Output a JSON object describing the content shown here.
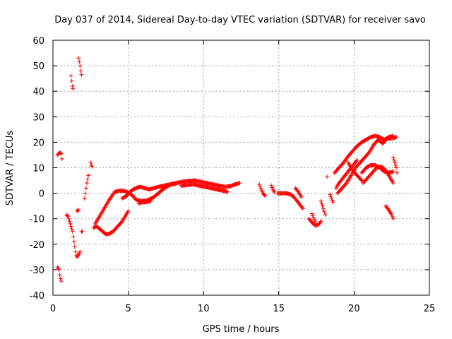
{
  "chart_data": {
    "type": "scatter",
    "title": "Day 037 of 2014, Sidereal Day-to-day VTEC variation (SDTVAR) for receiver savo",
    "xlabel": "GPS time / hours",
    "ylabel": "SDTVAR / TECUs",
    "xlim": [
      0,
      25
    ],
    "ylim": [
      -40,
      60
    ],
    "xticks": [
      0,
      5,
      10,
      15,
      20,
      25
    ],
    "yticks": [
      -40,
      -30,
      -20,
      -10,
      0,
      10,
      20,
      30,
      40,
      50,
      60
    ],
    "grid": true,
    "marker": "+",
    "color": "#ff0000",
    "series": [
      {
        "name": "SDTVAR",
        "segments": [
          [
            [
              0.3,
              15
            ],
            [
              0.45,
              16
            ],
            [
              0.55,
              15.5
            ],
            [
              0.6,
              13.5
            ]
          ],
          [
            [
              0.3,
              -29
            ],
            [
              0.4,
              -30
            ],
            [
              0.45,
              -32
            ],
            [
              0.5,
              -33.5
            ],
            [
              0.55,
              -34.5
            ]
          ],
          [
            [
              0.9,
              -8.5
            ],
            [
              1.0,
              -9
            ],
            [
              1.1,
              -11
            ],
            [
              1.2,
              -13
            ],
            [
              1.3,
              -15
            ],
            [
              1.35,
              -17
            ],
            [
              1.4,
              -19
            ],
            [
              1.45,
              -21
            ],
            [
              1.5,
              -23
            ],
            [
              1.55,
              -24.5
            ],
            [
              1.6,
              -25
            ],
            [
              1.7,
              -24
            ],
            [
              1.8,
              -23
            ]
          ],
          [
            [
              1.2,
              46
            ],
            [
              1.25,
              44
            ],
            [
              1.3,
              42
            ],
            [
              1.32,
              41
            ]
          ],
          [
            [
              1.7,
              53
            ],
            [
              1.75,
              51.5
            ],
            [
              1.8,
              50
            ],
            [
              1.85,
              48
            ],
            [
              1.9,
              46.5
            ]
          ],
          [
            [
              1.6,
              -7
            ],
            [
              1.7,
              -6.5
            ]
          ],
          [
            [
              1.9,
              -15
            ],
            [
              1.95,
              -15
            ]
          ],
          [
            [
              2.2,
              2
            ],
            [
              2.25,
              4
            ],
            [
              2.3,
              5.5
            ],
            [
              2.35,
              7
            ]
          ],
          [
            [
              2.1,
              -2
            ],
            [
              2.15,
              0
            ]
          ],
          [
            [
              2.5,
              12
            ],
            [
              2.55,
              11
            ],
            [
              2.6,
              10.5
            ]
          ],
          [
            [
              2.7,
              -13.5
            ],
            [
              2.9,
              -13
            ],
            [
              3.1,
              -14
            ],
            [
              3.3,
              -15
            ],
            [
              3.5,
              -16
            ],
            [
              3.7,
              -16
            ],
            [
              4.0,
              -15
            ],
            [
              4.3,
              -13
            ],
            [
              4.6,
              -11
            ],
            [
              4.8,
              -9
            ],
            [
              5.0,
              -7
            ]
          ],
          [
            [
              2.8,
              -12
            ],
            [
              3.0,
              -10
            ],
            [
              3.2,
              -8
            ],
            [
              3.5,
              -5
            ],
            [
              3.8,
              -2
            ],
            [
              4.1,
              0.5
            ],
            [
              4.4,
              1
            ],
            [
              4.7,
              1
            ],
            [
              4.9,
              0.5
            ],
            [
              5.1,
              0
            ],
            [
              5.3,
              -1
            ],
            [
              5.5,
              -2.5
            ],
            [
              5.8,
              -3
            ],
            [
              6.1,
              -3
            ],
            [
              6.4,
              -2.5
            ],
            [
              6.7,
              -1.5
            ],
            [
              7.0,
              0
            ],
            [
              7.3,
              1.5
            ],
            [
              7.6,
              2.8
            ],
            [
              7.9,
              3.5
            ],
            [
              8.2,
              3.8
            ]
          ],
          [
            [
              4.6,
              -2
            ],
            [
              4.9,
              -1
            ],
            [
              5.2,
              1
            ],
            [
              5.5,
              2
            ],
            [
              5.8,
              2.5
            ],
            [
              6.1,
              2
            ],
            [
              6.4,
              1.5
            ],
            [
              6.7,
              2
            ],
            [
              7.0,
              2.5
            ],
            [
              7.4,
              3
            ],
            [
              7.8,
              3.5
            ],
            [
              8.2,
              4
            ],
            [
              8.6,
              4.5
            ],
            [
              9.0,
              4.8
            ],
            [
              9.4,
              5
            ],
            [
              9.8,
              4.5
            ],
            [
              10.2,
              4
            ],
            [
              10.6,
              3.5
            ],
            [
              11.0,
              3
            ],
            [
              11.4,
              2.5
            ],
            [
              11.8,
              2.8
            ],
            [
              12.1,
              3.5
            ],
            [
              12.4,
              4
            ]
          ],
          [
            [
              5.7,
              -4
            ],
            [
              5.9,
              -3.5
            ],
            [
              6.2,
              -3.5
            ],
            [
              6.5,
              -3
            ]
          ],
          [
            [
              8.5,
              3
            ],
            [
              8.9,
              3.2
            ],
            [
              9.3,
              3.5
            ],
            [
              9.7,
              3
            ],
            [
              10.1,
              2.5
            ],
            [
              10.5,
              2
            ],
            [
              10.9,
              1.5
            ],
            [
              11.3,
              1
            ],
            [
              11.6,
              0.5
            ]
          ],
          [
            [
              13.7,
              3.5
            ],
            [
              13.8,
              2
            ],
            [
              13.9,
              0.5
            ],
            [
              14.0,
              -0.5
            ],
            [
              14.1,
              -1
            ]
          ],
          [
            [
              14.5,
              3
            ],
            [
              14.6,
              1.5
            ],
            [
              14.7,
              0.5
            ]
          ],
          [
            [
              14.9,
              0
            ],
            [
              15.2,
              0
            ],
            [
              15.5,
              0
            ],
            [
              15.8,
              -0.5
            ],
            [
              16.0,
              -1.5
            ],
            [
              16.2,
              -3
            ],
            [
              16.4,
              -4.5
            ],
            [
              16.6,
              -6
            ]
          ],
          [
            [
              16.1,
              2
            ],
            [
              16.3,
              0.5
            ],
            [
              16.5,
              -1.5
            ]
          ],
          [
            [
              17.0,
              -10
            ],
            [
              17.2,
              -11.5
            ],
            [
              17.4,
              -12.5
            ],
            [
              17.6,
              -12.5
            ],
            [
              17.8,
              -11
            ]
          ],
          [
            [
              17.2,
              -8
            ],
            [
              17.3,
              -9.5
            ],
            [
              17.4,
              -11
            ]
          ],
          [
            [
              17.8,
              -3
            ],
            [
              17.9,
              -5
            ],
            [
              18.0,
              -7
            ],
            [
              18.1,
              -8.5
            ]
          ],
          [
            [
              18.4,
              -0.5
            ],
            [
              18.5,
              -2
            ],
            [
              18.6,
              -3.5
            ]
          ],
          [
            [
              18.2,
              6.5
            ]
          ],
          [
            [
              18.7,
              8
            ],
            [
              19.0,
              10
            ],
            [
              19.3,
              12
            ],
            [
              19.6,
              14.5
            ],
            [
              19.9,
              16.5
            ],
            [
              20.2,
              18.5
            ],
            [
              20.5,
              20
            ],
            [
              20.8,
              21
            ],
            [
              21.1,
              22
            ],
            [
              21.4,
              22.5
            ],
            [
              21.7,
              22
            ],
            [
              22.0,
              21
            ],
            [
              22.3,
              22
            ],
            [
              22.6,
              22.5
            ]
          ],
          [
            [
              18.9,
              0
            ],
            [
              19.2,
              2
            ],
            [
              19.5,
              4
            ],
            [
              19.8,
              7
            ],
            [
              20.1,
              10
            ],
            [
              20.4,
              12
            ],
            [
              20.7,
              14
            ],
            [
              21.0,
              16
            ],
            [
              21.3,
              19
            ],
            [
              21.6,
              21
            ],
            [
              21.9,
              19.5
            ],
            [
              22.2,
              21.5
            ],
            [
              22.5,
              21.5
            ],
            [
              22.8,
              22
            ]
          ],
          [
            [
              18.8,
              2
            ],
            [
              19.0,
              4
            ],
            [
              19.2,
              5.5
            ],
            [
              19.4,
              7
            ],
            [
              19.6,
              8.5
            ],
            [
              19.8,
              10
            ],
            [
              20.0,
              11.5
            ],
            [
              20.2,
              13
            ]
          ],
          [
            [
              19.6,
              12
            ],
            [
              19.9,
              9
            ],
            [
              20.2,
              7
            ],
            [
              20.5,
              5
            ]
          ],
          [
            [
              20.6,
              4
            ],
            [
              20.9,
              6
            ],
            [
              21.2,
              8
            ],
            [
              21.5,
              10
            ],
            [
              21.8,
              10.5
            ],
            [
              22.1,
              9
            ],
            [
              22.4,
              6
            ],
            [
              22.6,
              4
            ]
          ],
          [
            [
              20.5,
              8
            ],
            [
              20.8,
              10
            ],
            [
              21.1,
              11
            ],
            [
              21.4,
              11
            ],
            [
              21.7,
              10
            ],
            [
              22.0,
              8.5
            ],
            [
              22.3,
              8
            ],
            [
              22.6,
              8.5
            ]
          ],
          [
            [
              22.6,
              14
            ],
            [
              22.7,
              12
            ],
            [
              22.8,
              10
            ],
            [
              22.85,
              8
            ]
          ],
          [
            [
              22.1,
              -5
            ],
            [
              22.3,
              -6.5
            ],
            [
              22.5,
              -8.5
            ],
            [
              22.6,
              -10
            ]
          ]
        ]
      }
    ]
  }
}
